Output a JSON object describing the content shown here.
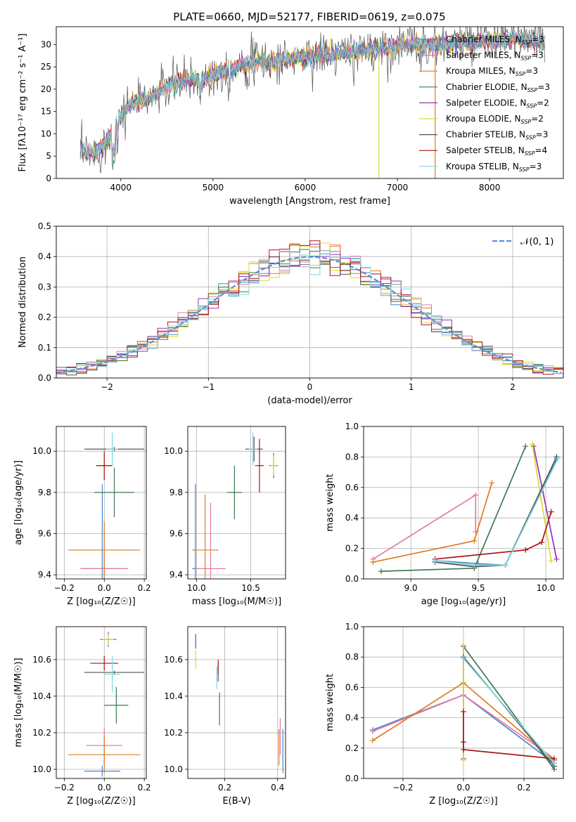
{
  "title": "PLATE=0660, MJD=52177, FIBERID=0619, z=0.075",
  "colors": {
    "chabrier_miles": "#4a86c8",
    "salpeter_miles": "#e87aa0",
    "kroupa_miles": "#e07b22",
    "chabrier_elodie": "#3e7a50",
    "salpeter_elodie": "#9b2fb5",
    "kroupa_elodie": "#d8dc2e",
    "chabrier_stelib": "#555555",
    "salpeter_stelib": "#a81414",
    "kroupa_stelib": "#7fd6df",
    "gaussian": "#5b8fd6",
    "grid": "#b0b0b0"
  },
  "chart_data": [
    {
      "id": "spectrum",
      "type": "line",
      "xlabel": "wavelength [Angstrom, rest frame]",
      "ylabel": "Flux [fλ10⁻¹⁷ erg cm⁻² s⁻¹ A⁻¹]",
      "xlim": [
        3300,
        8800
      ],
      "ylim": [
        0,
        34
      ],
      "xticks": [
        4000,
        5000,
        6000,
        7000,
        8000
      ],
      "yticks": [
        0,
        5,
        10,
        15,
        20,
        25,
        30
      ],
      "grid": false,
      "legend_position": "right",
      "legend": [
        {
          "key": "chabrier_miles",
          "label": "Chabrier MILES, N",
          "sub": "SSP",
          "suffix": "=3"
        },
        {
          "key": "salpeter_miles",
          "label": "Salpeter MILES, N",
          "sub": "SSP",
          "suffix": "=3"
        },
        {
          "key": "kroupa_miles",
          "label": "Kroupa MILES, N",
          "sub": "SSP",
          "suffix": "=3"
        },
        {
          "key": "chabrier_elodie",
          "label": "Chabrier ELODIE, N",
          "sub": "SSP",
          "suffix": "=3"
        },
        {
          "key": "salpeter_elodie",
          "label": "Salpeter ELODIE, N",
          "sub": "SSP",
          "suffix": "=2"
        },
        {
          "key": "kroupa_elodie",
          "label": "Kroupa ELODIE, N",
          "sub": "SSP",
          "suffix": "=2"
        },
        {
          "key": "chabrier_stelib",
          "label": "Chabrier STELIB, N",
          "sub": "SSP",
          "suffix": "=3"
        },
        {
          "key": "salpeter_stelib",
          "label": "Salpeter STELIB, N",
          "sub": "SSP",
          "suffix": "=4"
        },
        {
          "key": "kroupa_stelib",
          "label": "Kroupa STELIB, N",
          "sub": "SSP",
          "suffix": "=3"
        }
      ],
      "continuum": [
        [
          3560,
          6
        ],
        [
          3700,
          5.5
        ],
        [
          3850,
          8
        ],
        [
          3900,
          10
        ],
        [
          4000,
          14
        ],
        [
          4100,
          16.5
        ],
        [
          4300,
          18
        ],
        [
          4500,
          20.5
        ],
        [
          4700,
          22
        ],
        [
          4900,
          22.5
        ],
        [
          5100,
          24
        ],
        [
          5300,
          25.5
        ],
        [
          5500,
          26
        ],
        [
          5700,
          26.5
        ],
        [
          5900,
          27
        ],
        [
          6100,
          27.5
        ],
        [
          6300,
          28
        ],
        [
          6500,
          28
        ],
        [
          6700,
          29
        ],
        [
          6900,
          29.5
        ],
        [
          7100,
          30
        ],
        [
          7300,
          30
        ],
        [
          7500,
          30
        ],
        [
          7700,
          30.5
        ],
        [
          7900,
          30.5
        ],
        [
          8100,
          31
        ],
        [
          8300,
          31.5
        ],
        [
          8500,
          30.5
        ],
        [
          8600,
          30
        ]
      ]
    },
    {
      "id": "residuals",
      "type": "histogram",
      "xlabel": "(data-model)/error",
      "ylabel": "Normed distribution",
      "xlim": [
        -2.5,
        2.5
      ],
      "ylim": [
        0,
        0.5
      ],
      "xticks": [
        -2,
        -1,
        0,
        1,
        2
      ],
      "yticks": [
        0.0,
        0.1,
        0.2,
        0.3,
        0.4,
        0.5
      ],
      "grid": true,
      "legend": [
        {
          "key": "gaussian",
          "label": "𝒩(0, 1)"
        }
      ],
      "bin_width": 0.1
    },
    {
      "id": "age_vs_Z",
      "type": "scatter",
      "xlabel": "Z [log₁₀(Z/Z☉)]",
      "ylabel": "age  [log₁₀(age/yr)]",
      "xlim": [
        -0.24,
        0.21
      ],
      "ylim": [
        9.38,
        10.12
      ],
      "xticks": [
        -0.2,
        0.0,
        0.2
      ],
      "yticks": [
        9.4,
        9.6,
        9.8,
        10.0
      ],
      "grid": true,
      "points": [
        {
          "key": "chabrier_miles",
          "x": -0.01,
          "y": 9.43,
          "xerr": 0.1,
          "yerr": 0.41
        },
        {
          "key": "salpeter_miles",
          "x": 0.0,
          "y": 9.43,
          "xerr": 0.12,
          "yerr": 0.06
        },
        {
          "key": "kroupa_miles",
          "x": 0.0,
          "y": 9.52,
          "xerr": 0.18,
          "yerr": 0.14
        },
        {
          "key": "chabrier_elodie",
          "x": 0.05,
          "y": 9.8,
          "xerr": 0.1,
          "yerr": 0.12
        },
        {
          "key": "salpeter_elodie",
          "x": 0.0,
          "y": 9.93,
          "xerr": 0.04,
          "yerr": 0.02
        },
        {
          "key": "kroupa_elodie",
          "x": 0.0,
          "y": 9.93,
          "xerr": 0.04,
          "yerr": 0.02
        },
        {
          "key": "chabrier_stelib",
          "x": 0.05,
          "y": 10.01,
          "xerr": 0.15,
          "yerr": 0.01
        },
        {
          "key": "salpeter_stelib",
          "x": 0.0,
          "y": 9.93,
          "xerr": 0.04,
          "yerr": 0.07
        },
        {
          "key": "kroupa_stelib",
          "x": 0.04,
          "y": 10.01,
          "xerr": 0.03,
          "yerr": 0.08
        }
      ]
    },
    {
      "id": "age_vs_mass",
      "type": "scatter",
      "xlabel": "mass [log₁₀(M/M☉)]",
      "ylabel": "",
      "xlim": [
        9.92,
        10.82
      ],
      "ylim": [
        9.38,
        10.12
      ],
      "xticks": [
        10.0,
        10.5
      ],
      "yticks": [
        9.4,
        9.6,
        9.8,
        10.0
      ],
      "grid": true,
      "points": [
        {
          "key": "chabrier_miles",
          "x": 9.99,
          "y": 9.43,
          "xerr": 0.03,
          "yerr": 0.41
        },
        {
          "key": "salpeter_miles",
          "x": 10.13,
          "y": 9.43,
          "xerr": 0.14,
          "yerr": 0.32
        },
        {
          "key": "kroupa_miles",
          "x": 10.08,
          "y": 9.52,
          "xerr": 0.12,
          "yerr": 0.27
        },
        {
          "key": "chabrier_elodie",
          "x": 10.35,
          "y": 9.8,
          "xerr": 0.07,
          "yerr": 0.13
        },
        {
          "key": "salpeter_elodie",
          "x": 10.71,
          "y": 9.93,
          "xerr": 0.04,
          "yerr": 0.06
        },
        {
          "key": "kroupa_elodie",
          "x": 10.71,
          "y": 9.93,
          "xerr": 0.03,
          "yerr": 0.05
        },
        {
          "key": "chabrier_stelib",
          "x": 10.53,
          "y": 10.01,
          "xerr": 0.08,
          "yerr": 0.06
        },
        {
          "key": "salpeter_stelib",
          "x": 10.58,
          "y": 9.93,
          "xerr": 0.04,
          "yerr": 0.13
        },
        {
          "key": "kroupa_stelib",
          "x": 10.52,
          "y": 10.01,
          "xerr": 0.04,
          "yerr": 0.08
        }
      ]
    },
    {
      "id": "weight_vs_age",
      "type": "line",
      "xlabel": "age  [log₁₀(age/yr)]",
      "ylabel": "mass weight",
      "xlim": [
        8.65,
        10.13
      ],
      "ylim": [
        0,
        1
      ],
      "xticks": [
        9.0,
        9.5,
        10.0
      ],
      "yticks": [
        0.0,
        0.2,
        0.4,
        0.6,
        0.8,
        1.0
      ],
      "grid": true,
      "series": [
        {
          "key": "chabrier_miles",
          "x": [
            9.18,
            9.5,
            9.7,
            10.08
          ],
          "y": [
            0.12,
            0.1,
            0.09,
            0.79
          ]
        },
        {
          "key": "salpeter_miles",
          "x": [
            8.72,
            9.48,
            9.48
          ],
          "y": [
            0.13,
            0.55,
            0.31
          ]
        },
        {
          "key": "kroupa_miles",
          "x": [
            8.72,
            9.47,
            9.6
          ],
          "y": [
            0.11,
            0.25,
            0.63
          ]
        },
        {
          "key": "chabrier_elodie",
          "x": [
            8.78,
            9.47,
            9.85
          ],
          "y": [
            0.05,
            0.07,
            0.87
          ]
        },
        {
          "key": "salpeter_elodie",
          "x": [
            9.91,
            10.08
          ],
          "y": [
            0.87,
            0.13
          ]
        },
        {
          "key": "kroupa_elodie",
          "x": [
            9.9,
            10.04
          ],
          "y": [
            0.88,
            0.12
          ]
        },
        {
          "key": "chabrier_stelib",
          "x": [
            9.18,
            9.47,
            9.7,
            10.08
          ],
          "y": [
            0.11,
            0.08,
            0.09,
            0.8
          ]
        },
        {
          "key": "salpeter_stelib",
          "x": [
            9.18,
            9.85,
            9.97,
            10.04
          ],
          "y": [
            0.13,
            0.19,
            0.24,
            0.44
          ]
        },
        {
          "key": "kroupa_stelib",
          "x": [
            9.18,
            9.47,
            9.7,
            10.09
          ],
          "y": [
            0.12,
            0.09,
            0.09,
            0.79
          ]
        }
      ]
    },
    {
      "id": "mass_vs_Z",
      "type": "scatter",
      "xlabel": "Z [log₁₀(Z/Z☉)]",
      "ylabel": "mass [log₁₀(M/M☉)]",
      "xlim": [
        -0.24,
        0.21
      ],
      "ylim": [
        9.95,
        10.78
      ],
      "xticks": [
        -0.2,
        0.0,
        0.2
      ],
      "yticks": [
        10.0,
        10.2,
        10.4,
        10.6
      ],
      "grid": true,
      "points": [
        {
          "key": "chabrier_miles",
          "x": -0.01,
          "y": 9.99,
          "xerr": 0.09,
          "yerr": 0.03
        },
        {
          "key": "salpeter_miles",
          "x": 0.0,
          "y": 10.13,
          "xerr": 0.09,
          "yerr": 0.1
        },
        {
          "key": "kroupa_miles",
          "x": 0.0,
          "y": 10.08,
          "xerr": 0.18,
          "yerr": 0.1
        },
        {
          "key": "chabrier_elodie",
          "x": 0.06,
          "y": 10.35,
          "xerr": 0.06,
          "yerr": 0.1
        },
        {
          "key": "salpeter_elodie",
          "x": 0.02,
          "y": 10.71,
          "xerr": 0.04,
          "yerr": 0.04
        },
        {
          "key": "kroupa_elodie",
          "x": 0.02,
          "y": 10.71,
          "xerr": 0.03,
          "yerr": 0.03
        },
        {
          "key": "chabrier_stelib",
          "x": 0.05,
          "y": 10.53,
          "xerr": 0.15,
          "yerr": 0.01
        },
        {
          "key": "salpeter_stelib",
          "x": 0.0,
          "y": 10.58,
          "xerr": 0.07,
          "yerr": 0.04
        },
        {
          "key": "kroupa_stelib",
          "x": 0.04,
          "y": 10.52,
          "xerr": 0.04,
          "yerr": 0.1
        }
      ]
    },
    {
      "id": "mass_vs_ebv",
      "type": "scatter",
      "xlabel": "E(B-V)",
      "ylabel": "",
      "xlim": [
        0.06,
        0.43
      ],
      "ylim": [
        9.95,
        10.78
      ],
      "xticks": [
        0.2,
        0.4
      ],
      "yticks": [
        10.0,
        10.2,
        10.4,
        10.6
      ],
      "grid": true,
      "points": [
        {
          "key": "chabrier_miles",
          "x": 0.42,
          "y": 10.1,
          "xerr": 0.0,
          "yerr": 0.12
        },
        {
          "key": "salpeter_miles",
          "x": 0.41,
          "y": 10.18,
          "xerr": 0.0,
          "yerr": 0.1
        },
        {
          "key": "kroupa_miles",
          "x": 0.405,
          "y": 10.12,
          "xerr": 0.0,
          "yerr": 0.1
        },
        {
          "key": "chabrier_elodie",
          "x": 0.18,
          "y": 10.33,
          "xerr": 0.0,
          "yerr": 0.09
        },
        {
          "key": "salpeter_elodie",
          "x": 0.09,
          "y": 10.7,
          "xerr": 0.0,
          "yerr": 0.04
        },
        {
          "key": "kroupa_elodie",
          "x": 0.09,
          "y": 10.6,
          "xerr": 0.0,
          "yerr": 0.05
        },
        {
          "key": "chabrier_stelib",
          "x": 0.175,
          "y": 10.53,
          "xerr": 0.0,
          "yerr": 0.05
        },
        {
          "key": "salpeter_stelib",
          "x": 0.175,
          "y": 10.56,
          "xerr": 0.0,
          "yerr": 0.04
        },
        {
          "key": "kroupa_stelib",
          "x": 0.17,
          "y": 10.5,
          "xerr": 0.0,
          "yerr": 0.06
        }
      ]
    },
    {
      "id": "weight_vs_Z",
      "type": "line",
      "xlabel": "Z [log₁₀(Z/Z☉)]",
      "ylabel": "mass weight",
      "xlim": [
        -0.33,
        0.33
      ],
      "ylim": [
        0,
        1
      ],
      "xticks": [
        -0.2,
        0.0,
        0.2
      ],
      "yticks": [
        0.0,
        0.2,
        0.4,
        0.6,
        0.8,
        1.0
      ],
      "grid": true,
      "series": [
        {
          "key": "chabrier_miles",
          "x": [
            -0.3,
            0.0,
            0.3
          ],
          "y": [
            0.32,
            0.55,
            0.1
          ]
        },
        {
          "key": "salpeter_miles",
          "x": [
            -0.3,
            0.0,
            0.3
          ],
          "y": [
            0.31,
            0.55,
            0.13
          ]
        },
        {
          "key": "kroupa_miles",
          "x": [
            -0.3,
            0.0,
            0.3
          ],
          "y": [
            0.25,
            0.63,
            0.12
          ]
        },
        {
          "key": "chabrier_elodie",
          "x": [
            0.0,
            0.3
          ],
          "y": [
            0.87,
            0.06
          ]
        },
        {
          "key": "salpeter_elodie",
          "x": [
            0.0,
            0.0
          ],
          "y": [
            0.87,
            0.13
          ]
        },
        {
          "key": "kroupa_elodie",
          "x": [
            0.0,
            0.0
          ],
          "y": [
            0.88,
            0.12
          ]
        },
        {
          "key": "chabrier_stelib",
          "x": [
            0.0,
            0.3
          ],
          "y": [
            0.8,
            0.08
          ]
        },
        {
          "key": "salpeter_stelib",
          "x": [
            0.0,
            0.0,
            0.0,
            0.3
          ],
          "y": [
            0.44,
            0.24,
            0.19,
            0.13
          ]
        },
        {
          "key": "kroupa_stelib",
          "x": [
            0.0,
            0.3
          ],
          "y": [
            0.79,
            0.1
          ]
        }
      ]
    }
  ]
}
